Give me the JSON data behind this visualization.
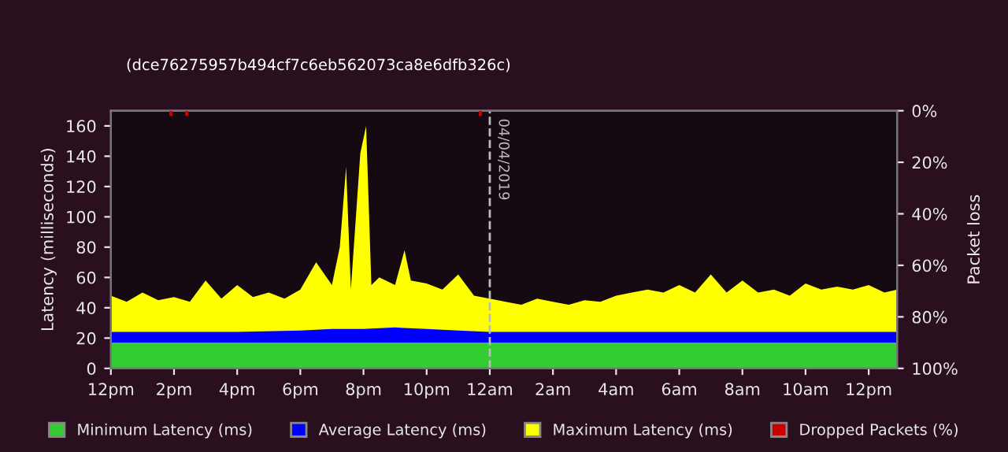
{
  "chart_data": {
    "type": "area",
    "subtitle": "(dce76275957b494cf7c6eb562073ca8e6dfb326c)",
    "ylabel": "Latency (milliseconds)",
    "y2label": "Packet loss",
    "xlim": [
      "2019-04-03T12:00",
      "2019-04-04T12:54"
    ],
    "xticks": [
      {
        "value": "2019-04-03T12:00",
        "label": "12pm"
      },
      {
        "value": "2019-04-03T14:00",
        "label": "2pm"
      },
      {
        "value": "2019-04-03T16:00",
        "label": "4pm"
      },
      {
        "value": "2019-04-03T18:00",
        "label": "6pm"
      },
      {
        "value": "2019-04-03T20:00",
        "label": "8pm"
      },
      {
        "value": "2019-04-03T22:00",
        "label": "10pm"
      },
      {
        "value": "2019-04-04T00:00",
        "label": "12am"
      },
      {
        "value": "2019-04-04T02:00",
        "label": "2am"
      },
      {
        "value": "2019-04-04T04:00",
        "label": "4am"
      },
      {
        "value": "2019-04-04T06:00",
        "label": "6am"
      },
      {
        "value": "2019-04-04T08:00",
        "label": "8am"
      },
      {
        "value": "2019-04-04T10:00",
        "label": "10am"
      },
      {
        "value": "2019-04-04T12:00",
        "label": "12pm"
      }
    ],
    "ylim": [
      0,
      170
    ],
    "yticks": [
      0,
      20,
      40,
      60,
      80,
      100,
      120,
      140,
      160
    ],
    "y2lim": [
      100,
      0
    ],
    "y2ticks": [
      {
        "value": 0,
        "label": "0%"
      },
      {
        "value": 20,
        "label": "20%"
      },
      {
        "value": 40,
        "label": "40%"
      },
      {
        "value": 60,
        "label": "60%"
      },
      {
        "value": 80,
        "label": "80%"
      },
      {
        "value": 100,
        "label": "100%"
      }
    ],
    "series": [
      {
        "name": "Minimum Latency (ms)",
        "color": "#33cc33",
        "x": [
          "2019-04-03T12:00",
          "2019-04-04T00:00",
          "2019-04-04T12:54"
        ],
        "values": [
          17,
          17,
          17
        ]
      },
      {
        "name": "Average Latency (ms)",
        "color": "#0000ff",
        "x": [
          "2019-04-03T12:00",
          "2019-04-03T14:00",
          "2019-04-03T16:00",
          "2019-04-03T18:00",
          "2019-04-03T19:00",
          "2019-04-03T20:00",
          "2019-04-03T21:00",
          "2019-04-03T22:00",
          "2019-04-03T23:00",
          "2019-04-04T00:00",
          "2019-04-04T02:00",
          "2019-04-04T04:00",
          "2019-04-04T06:00",
          "2019-04-04T08:00",
          "2019-04-04T10:00",
          "2019-04-04T12:00",
          "2019-04-04T12:54"
        ],
        "values": [
          24,
          24,
          24,
          25,
          26,
          26,
          27,
          26,
          25,
          24,
          24,
          24,
          24,
          24,
          24,
          24,
          24
        ]
      },
      {
        "name": "Maximum Latency (ms)",
        "color": "#ffff00",
        "x": [
          "2019-04-03T12:00",
          "2019-04-03T12:30",
          "2019-04-03T13:00",
          "2019-04-03T13:30",
          "2019-04-03T14:00",
          "2019-04-03T14:30",
          "2019-04-03T15:00",
          "2019-04-03T15:30",
          "2019-04-03T16:00",
          "2019-04-03T16:30",
          "2019-04-03T17:00",
          "2019-04-03T17:30",
          "2019-04-03T18:00",
          "2019-04-03T18:30",
          "2019-04-03T19:00",
          "2019-04-03T19:15",
          "2019-04-03T19:27",
          "2019-04-03T19:36",
          "2019-04-03T19:54",
          "2019-04-03T20:05",
          "2019-04-03T20:15",
          "2019-04-03T20:30",
          "2019-04-03T21:00",
          "2019-04-03T21:18",
          "2019-04-03T21:30",
          "2019-04-03T22:00",
          "2019-04-03T22:30",
          "2019-04-03T23:00",
          "2019-04-03T23:30",
          "2019-04-04T00:00",
          "2019-04-04T00:30",
          "2019-04-04T01:00",
          "2019-04-04T01:30",
          "2019-04-04T02:00",
          "2019-04-04T02:30",
          "2019-04-04T03:00",
          "2019-04-04T03:30",
          "2019-04-04T04:00",
          "2019-04-04T04:30",
          "2019-04-04T05:00",
          "2019-04-04T05:30",
          "2019-04-04T06:00",
          "2019-04-04T06:30",
          "2019-04-04T07:00",
          "2019-04-04T07:30",
          "2019-04-04T08:00",
          "2019-04-04T08:30",
          "2019-04-04T09:00",
          "2019-04-04T09:30",
          "2019-04-04T10:00",
          "2019-04-04T10:30",
          "2019-04-04T11:00",
          "2019-04-04T11:30",
          "2019-04-04T12:00",
          "2019-04-04T12:30",
          "2019-04-04T12:54"
        ],
        "values": [
          48,
          44,
          50,
          45,
          47,
          44,
          58,
          46,
          55,
          47,
          50,
          46,
          52,
          70,
          55,
          80,
          133,
          52,
          142,
          160,
          55,
          60,
          55,
          78,
          58,
          56,
          52,
          62,
          48,
          46,
          44,
          42,
          46,
          44,
          42,
          45,
          44,
          48,
          50,
          52,
          50,
          55,
          50,
          62,
          50,
          58,
          50,
          52,
          48,
          56,
          52,
          54,
          52,
          55,
          50,
          52
        ]
      },
      {
        "name": "Dropped Packets (%)",
        "type": "bar",
        "axis": "y2",
        "color": "#cc0000",
        "x": [
          "2019-04-03T13:54",
          "2019-04-03T14:24",
          "2019-04-03T23:42"
        ],
        "values": [
          2,
          2,
          2
        ]
      }
    ],
    "ref_lines": [
      {
        "axis": "x",
        "value": "2019-04-04T00:00",
        "label": "04/04/2019",
        "color": "#bbbbbb",
        "line_style": "dashed"
      }
    ],
    "legend": "bottom",
    "grid": false
  }
}
